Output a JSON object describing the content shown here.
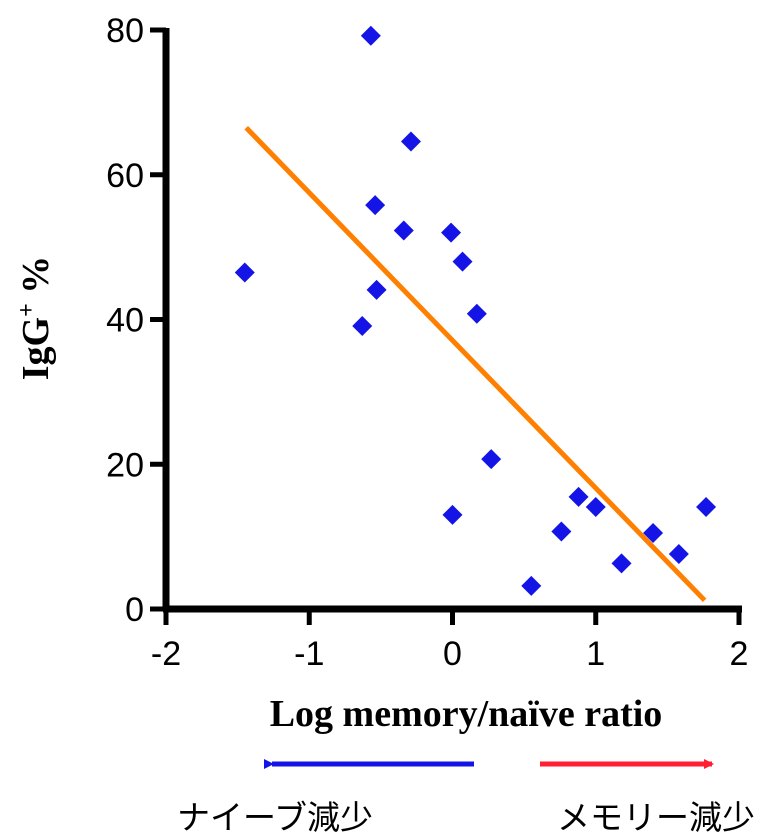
{
  "chart_data": {
    "type": "scatter",
    "xlabel": "Log memory/naïve ratio",
    "ylabel": "IgG",
    "ylabel_superscript": "+",
    "ylabel_suffix": " %",
    "xlim": [
      -2,
      2
    ],
    "ylim": [
      0,
      80
    ],
    "x_ticks": [
      -2,
      -1,
      0,
      1,
      2
    ],
    "y_ticks": [
      0,
      20,
      40,
      60,
      80
    ],
    "x_tick_labels": [
      "-2",
      "-1",
      "0",
      "1",
      "2"
    ],
    "y_tick_labels": [
      "0",
      "20",
      "40",
      "60",
      "80"
    ],
    "grid": false,
    "marker": "diamond",
    "marker_color": "#1414e6",
    "points": [
      {
        "x": -1.45,
        "y": 46.5
      },
      {
        "x": -0.57,
        "y": 79.2
      },
      {
        "x": -0.29,
        "y": 64.6
      },
      {
        "x": -0.54,
        "y": 55.8
      },
      {
        "x": -0.34,
        "y": 52.3
      },
      {
        "x": -0.01,
        "y": 52.0
      },
      {
        "x": 0.07,
        "y": 48.0
      },
      {
        "x": -0.53,
        "y": 44.1
      },
      {
        "x": -0.63,
        "y": 39.1
      },
      {
        "x": 0.17,
        "y": 40.8
      },
      {
        "x": 0.27,
        "y": 20.7
      },
      {
        "x": 0.0,
        "y": 13.0
      },
      {
        "x": 0.55,
        "y": 3.2
      },
      {
        "x": 0.76,
        "y": 10.7
      },
      {
        "x": 0.88,
        "y": 15.5
      },
      {
        "x": 1.0,
        "y": 14.1
      },
      {
        "x": 1.18,
        "y": 6.3
      },
      {
        "x": 1.4,
        "y": 10.5
      },
      {
        "x": 1.58,
        "y": 7.6
      },
      {
        "x": 1.77,
        "y": 14.1
      }
    ],
    "trendline": {
      "color": "#ff8000",
      "x_start": -1.44,
      "y_start": 66.5,
      "x_end": 1.76,
      "y_end": 1.2
    },
    "annotations": [
      {
        "label": "ナイーブ減少",
        "direction": "left",
        "color": "#1414e6"
      },
      {
        "label": "メモリー減少",
        "direction": "right",
        "color": "#ff1e32"
      }
    ]
  }
}
